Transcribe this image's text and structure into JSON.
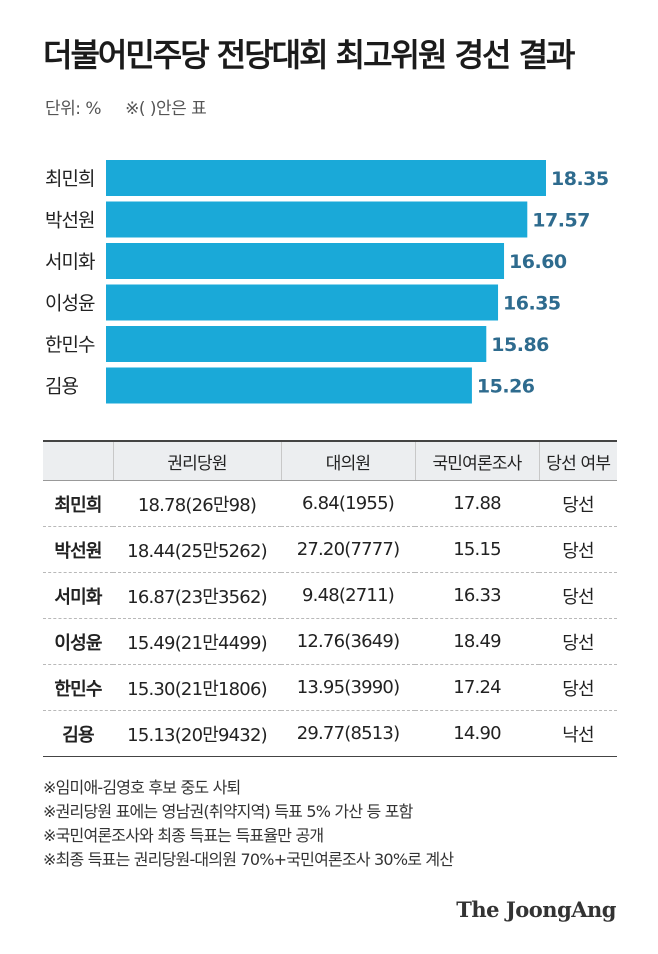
{
  "title": "더불어민주당 전당대회 최고위원 경선 결과",
  "unit_note": "단위: %",
  "paren_note": "※( )안은 표",
  "colors": {
    "bar": "#1aa9d8",
    "value_text": "#2e6b8e",
    "elected": "#2a9fc4",
    "lost": "#d2522a"
  },
  "chart_data": {
    "type": "bar",
    "orientation": "horizontal",
    "categories": [
      "최민희",
      "박선원",
      "서미화",
      "이성윤",
      "한민수",
      "김용"
    ],
    "values": [
      18.35,
      17.57,
      16.6,
      16.35,
      15.86,
      15.26
    ],
    "value_labels": [
      "18.35",
      "17.57",
      "16.60",
      "16.35",
      "15.86",
      "15.26"
    ],
    "title": "",
    "xlabel": "",
    "ylabel": ""
  },
  "table": {
    "headers": [
      "",
      "권리당원",
      "대의원",
      "국민여론조사",
      "당선 여부"
    ],
    "rows": [
      {
        "name": "최민희",
        "members": "18.78(26만98)",
        "delegates": "6.84(1955)",
        "poll": "17.88",
        "result": "당선",
        "elected": true
      },
      {
        "name": "박선원",
        "members": "18.44(25만5262)",
        "delegates": "27.20(7777)",
        "poll": "15.15",
        "result": "당선",
        "elected": true
      },
      {
        "name": "서미화",
        "members": "16.87(23만3562)",
        "delegates": "9.48(2711)",
        "poll": "16.33",
        "result": "당선",
        "elected": true
      },
      {
        "name": "이성윤",
        "members": "15.49(21만4499)",
        "delegates": "12.76(3649)",
        "poll": "18.49",
        "result": "당선",
        "elected": true
      },
      {
        "name": "한민수",
        "members": "15.30(21만1806)",
        "delegates": "13.95(3990)",
        "poll": "17.24",
        "result": "당선",
        "elected": true
      },
      {
        "name": "김용",
        "members": "15.13(20만9432)",
        "delegates": "29.77(8513)",
        "poll": "14.90",
        "result": "낙선",
        "elected": false
      }
    ]
  },
  "notes": [
    "※임미애-김영호 후보 중도 사퇴",
    "※권리당원 표에는 영남권(취약지역) 득표 5% 가산 등 포함",
    "※국민여론조사와 최종 득표는 득표율만 공개",
    "※최종 득표는 권리당원-대의원 70%+국민여론조사 30%로 계산"
  ],
  "source_logo": "The JoongAng"
}
